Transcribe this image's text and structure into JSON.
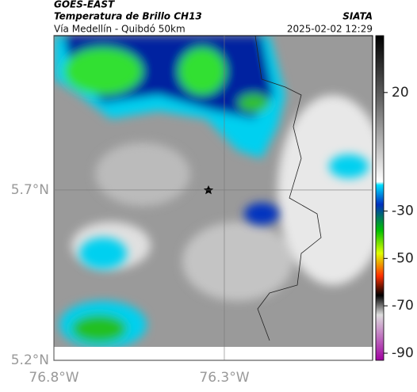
{
  "header": {
    "title": "GOES-EAST",
    "subtitle": "Temperatura de Brillo CH13",
    "source": "SIATA",
    "route": "Vía Medellín - Quibdó 50km",
    "timestamp": "2025-02-02 12:29"
  },
  "map": {
    "latlim": [
      5.2,
      6.153
    ],
    "lonlim": [
      -76.8,
      -75.865
    ],
    "lat_ticks": [
      {
        "value": 5.2,
        "label": "5.2°N"
      },
      {
        "value": 5.7,
        "label": "5.7°N"
      }
    ],
    "lon_ticks": [
      {
        "value": -76.8,
        "label": "76.8°W"
      },
      {
        "value": -76.3,
        "label": "76.3°W"
      }
    ]
  },
  "colorbar": {
    "range": [
      44,
      -93
    ],
    "ticks": [
      20,
      -30,
      -50,
      -70,
      -90
    ]
  }
}
